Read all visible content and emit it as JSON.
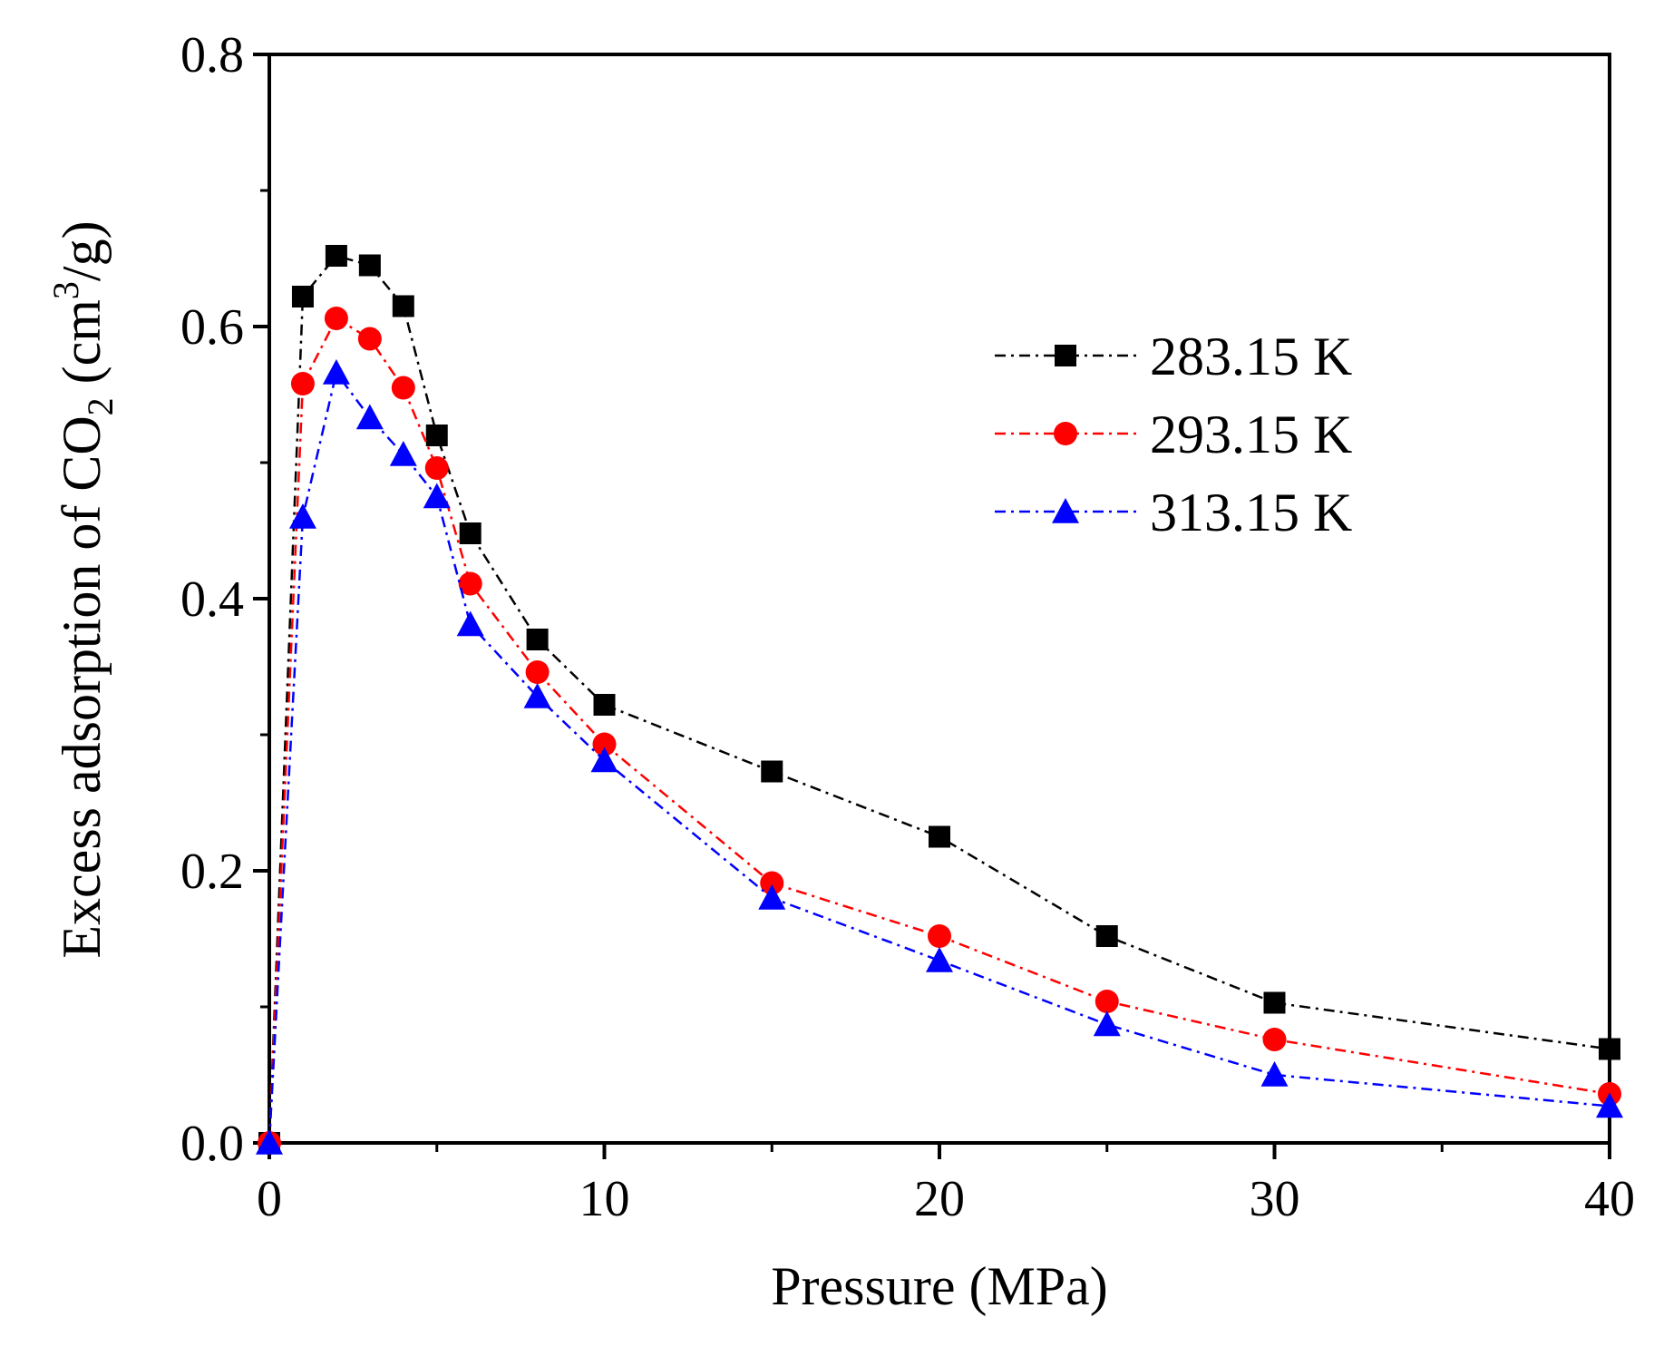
{
  "chart_data": {
    "type": "line",
    "title": "",
    "xlabel": "Pressure (MPa)",
    "ylabel": {
      "prefix": "Excess adsorption of CO",
      "subscript": "2",
      "middle": " (cm",
      "superscript": "3",
      "suffix": "/g)"
    },
    "xlim": [
      0,
      40
    ],
    "ylim": [
      0,
      0.8
    ],
    "x_ticks": [
      0,
      10,
      20,
      30,
      40
    ],
    "x_tick_labels": [
      "0",
      "10",
      "20",
      "30",
      "40"
    ],
    "y_ticks": [
      0.0,
      0.2,
      0.4,
      0.6,
      0.8
    ],
    "y_tick_labels": [
      "0.0",
      "0.2",
      "0.4",
      "0.6",
      "0.8"
    ],
    "grid": false,
    "legend_position": "top-right",
    "x": [
      0,
      1,
      2,
      3,
      4,
      5,
      6,
      8,
      10,
      15,
      20,
      25,
      30,
      40
    ],
    "series": [
      {
        "name": "283.15 K",
        "color": "#000000",
        "marker": "square",
        "values": [
          0.0,
          0.622,
          0.652,
          0.645,
          0.615,
          0.52,
          0.448,
          0.37,
          0.322,
          0.273,
          0.225,
          0.152,
          0.103,
          0.069
        ]
      },
      {
        "name": "293.15 K",
        "color": "#ff0000",
        "marker": "circle",
        "values": [
          0.0,
          0.558,
          0.606,
          0.591,
          0.555,
          0.496,
          0.411,
          0.346,
          0.293,
          0.191,
          0.152,
          0.104,
          0.076,
          0.036
        ]
      },
      {
        "name": "313.15 K",
        "color": "#0000ff",
        "marker": "triangle",
        "values": [
          0.0,
          0.46,
          0.566,
          0.533,
          0.506,
          0.475,
          0.381,
          0.328,
          0.281,
          0.18,
          0.134,
          0.087,
          0.05,
          0.027
        ]
      }
    ]
  }
}
